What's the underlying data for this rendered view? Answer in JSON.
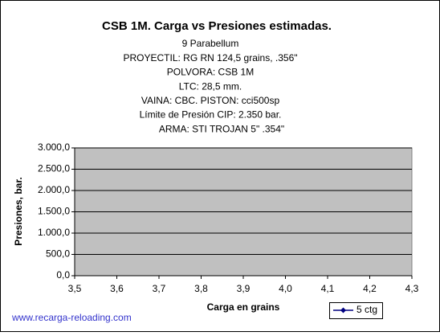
{
  "chart_data": {
    "type": "line",
    "title": "CSB 1M. Carga vs Presiones estimadas.",
    "subtitle": [
      "9 Parabellum",
      "PROYECTIL: RG RN 124,5 grains, .356\"",
      "POLVORA: CSB 1M",
      "LTC: 28,5 mm.",
      "VAINA: CBC. PISTON: cci500sp",
      "Límite de Presión CIP: 2.350 bar.",
      "ARMA: STI TROJAN 5\"  .354\""
    ],
    "x_label": "Carga en grains",
    "y_label": "Presiones, bar.",
    "annotation": "www.recarga-reloading.com",
    "xlim": [
      3.5,
      4.3
    ],
    "xticks": [
      {
        "value": 3.5,
        "label": "3,5"
      },
      {
        "value": 3.6,
        "label": "3,6"
      },
      {
        "value": 3.7,
        "label": "3,7"
      },
      {
        "value": 3.8,
        "label": "3,8"
      },
      {
        "value": 3.9,
        "label": "3,9"
      },
      {
        "value": 4.0,
        "label": "4,0"
      },
      {
        "value": 4.1,
        "label": "4,1"
      },
      {
        "value": 4.2,
        "label": "4,2"
      },
      {
        "value": 4.3,
        "label": "4,3"
      }
    ],
    "ylim": [
      0,
      3000
    ],
    "yticks": [
      {
        "value": 0,
        "label": "0,0"
      },
      {
        "value": 500,
        "label": "500,0"
      },
      {
        "value": 1000,
        "label": "1.000,0"
      },
      {
        "value": 1500,
        "label": "1.500,0"
      },
      {
        "value": 2000,
        "label": "2.000,0"
      },
      {
        "value": 2500,
        "label": "2.500,0"
      },
      {
        "value": 3000,
        "label": "3.000,0"
      }
    ],
    "grid": true,
    "plot_background": "#c0c0c0",
    "series": [
      {
        "name": "5 ctg",
        "color": "#000080",
        "x": [],
        "values": []
      }
    ]
  }
}
